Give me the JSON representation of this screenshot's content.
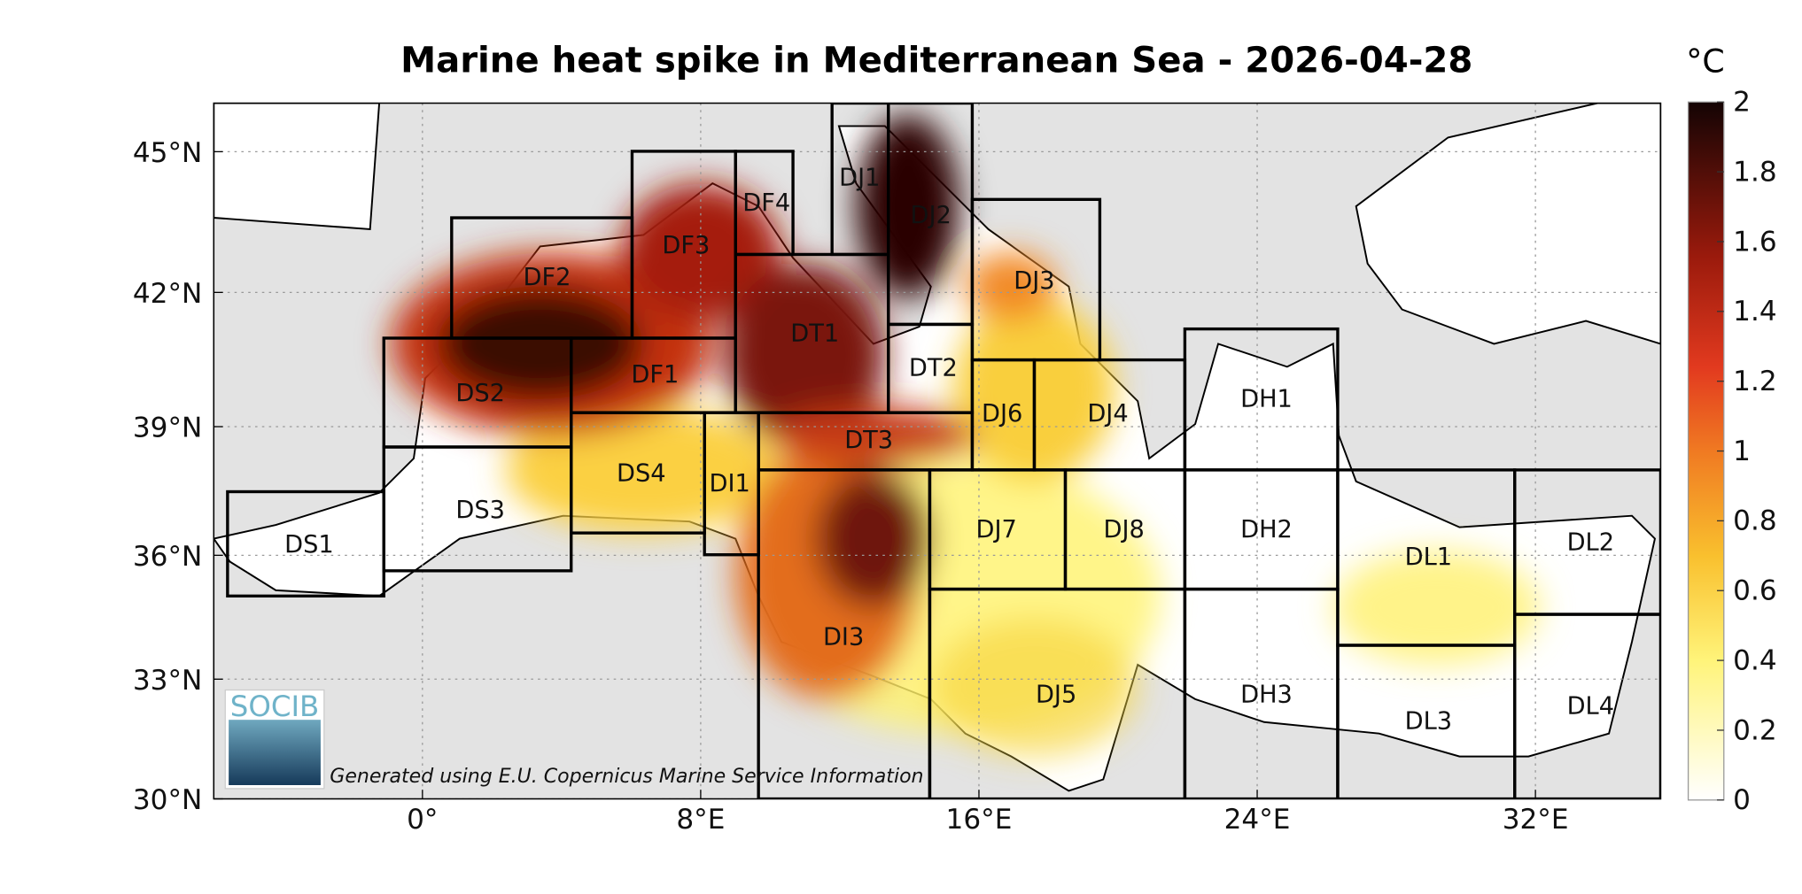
{
  "map": {
    "title": "Marine heat spike in Mediterranean Sea - 2026-04-28",
    "xlim": [
      -6,
      35.6
    ],
    "ylim": [
      30,
      46
    ],
    "xticks": [
      {
        "value": 0,
        "label": "0°"
      },
      {
        "value": 8,
        "label": "8°E"
      },
      {
        "value": 16,
        "label": "16°E"
      },
      {
        "value": 24,
        "label": "24°E"
      },
      {
        "value": 32,
        "label": "32°E"
      }
    ],
    "yticks": [
      {
        "value": 30,
        "label": "30°N"
      },
      {
        "value": 33,
        "label": "33°N"
      },
      {
        "value": 36,
        "label": "36°N"
      },
      {
        "value": 39,
        "label": "39°N"
      },
      {
        "value": 42,
        "label": "42°N"
      },
      {
        "value": 45,
        "label": "45°N"
      }
    ],
    "grid": true,
    "colorbar": {
      "unit": "°C",
      "lim": [
        0,
        2
      ],
      "ticks": [
        0,
        0.2,
        0.4,
        0.6,
        0.8,
        1,
        1.2,
        1.4,
        1.6,
        1.8,
        2
      ]
    },
    "regions": [
      "DS1",
      "DS2",
      "DS3",
      "DS4",
      "DF1",
      "DF2",
      "DF3",
      "DF4",
      "DI1",
      "DI3",
      "DT1",
      "DT2",
      "DT3",
      "DJ1",
      "DJ2",
      "DJ3",
      "DJ4",
      "DJ5",
      "DJ6",
      "DJ7",
      "DJ8",
      "DH1",
      "DH2",
      "DH3",
      "DL1",
      "DL2",
      "DL3",
      "DL4"
    ],
    "logo": "SOCIB",
    "credit": "Generated using E.U. Copernicus Marine Service Information"
  }
}
